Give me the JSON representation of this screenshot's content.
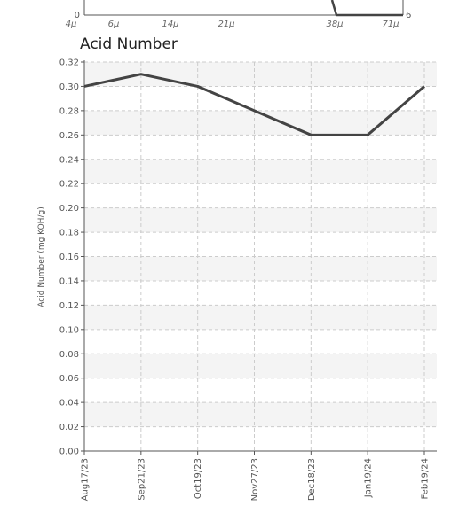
{
  "top_chart": {
    "y_left_label": "0",
    "y_right_label": "6",
    "x_ticks": [
      "4μ",
      "6μ",
      "14μ",
      "21μ",
      "38μ",
      "71μ"
    ]
  },
  "chart_data": {
    "type": "line",
    "title": "Acid Number",
    "xlabel": "",
    "ylabel": "Acid Number (mg KOH/g)",
    "categories": [
      "Aug17/23",
      "Sep21/23",
      "Oct19/23",
      "Nov27/23",
      "Dec18/23",
      "Jan19/24",
      "Feb19/24"
    ],
    "series": [
      {
        "values": [
          0.3,
          0.31,
          0.3,
          0.28,
          0.26,
          0.26,
          0.3
        ]
      }
    ],
    "ylim": [
      0,
      0.32
    ],
    "y_ticks": [
      "0.00",
      "0.02",
      "0.04",
      "0.06",
      "0.08",
      "0.10",
      "0.12",
      "0.14",
      "0.16",
      "0.18",
      "0.20",
      "0.22",
      "0.24",
      "0.26",
      "0.28",
      "0.30",
      "0.32"
    ],
    "grid": true,
    "line_color": "#444444",
    "band_color": "#f4f4f4"
  }
}
